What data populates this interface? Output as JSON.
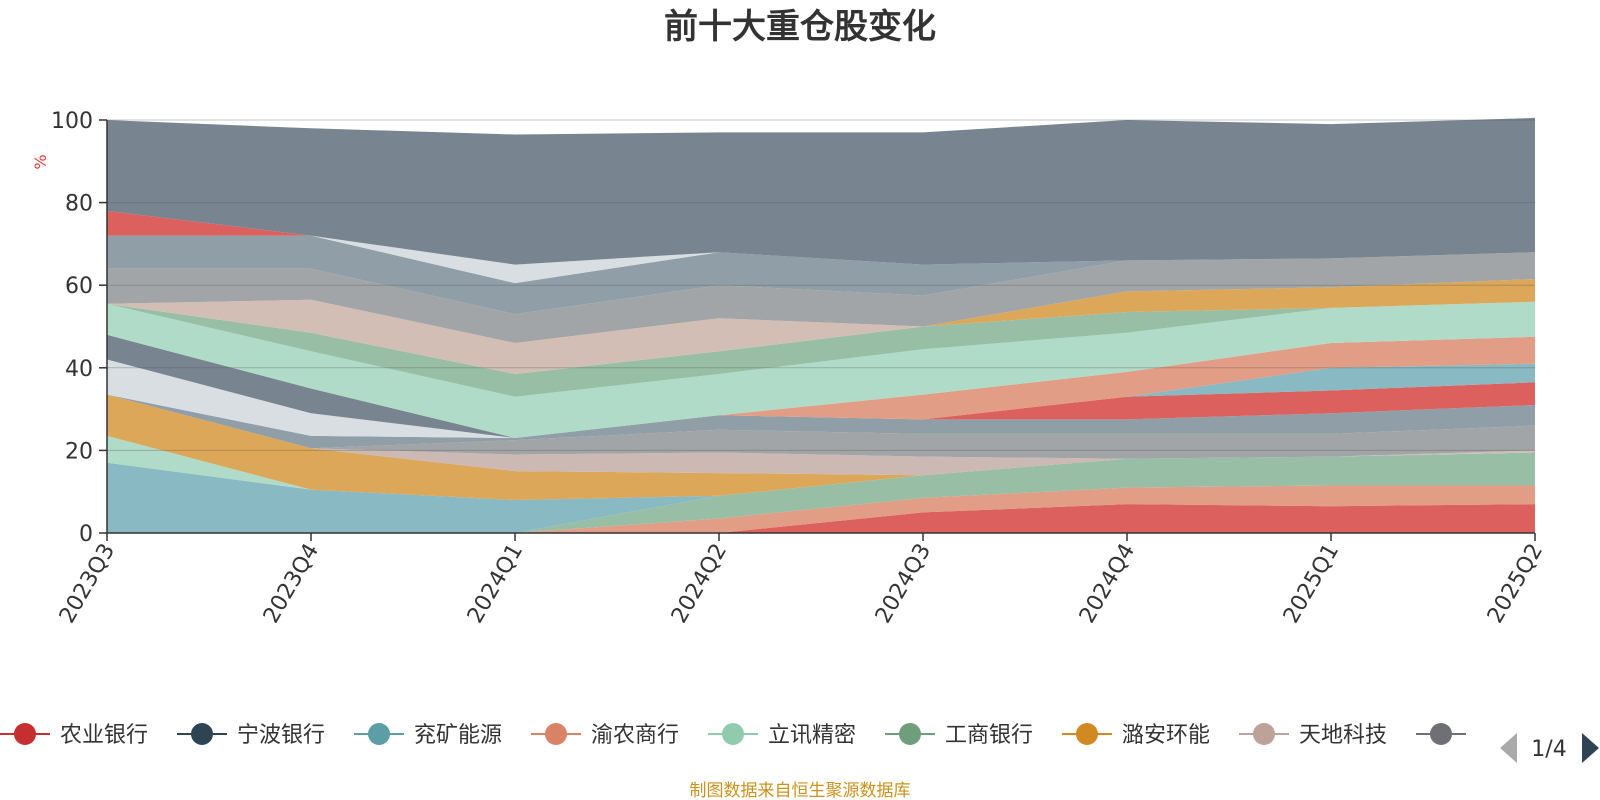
{
  "chart_data": {
    "type": "area",
    "stacked": true,
    "title": "前十大重仓股变化",
    "unit_label": "%",
    "ylim": [
      0,
      100
    ],
    "yticks": [
      0,
      20,
      40,
      60,
      80,
      100
    ],
    "grid": true,
    "categories": [
      "2023Q3",
      "2023Q4",
      "2024Q1",
      "2024Q2",
      "2024Q3",
      "2024Q4",
      "2025Q1",
      "2025Q2"
    ],
    "series": [
      {
        "name": "农业银行",
        "color": "#d9534f",
        "values": [
          0,
          0,
          0,
          0,
          5,
          7,
          6.5,
          7
        ]
      },
      {
        "name": "",
        "color": "#e0957c",
        "values": [
          0,
          0,
          0,
          3.5,
          3.5,
          4,
          5,
          4.5
        ]
      },
      {
        "name": "",
        "color": "#8fba9d",
        "values": [
          0,
          0,
          0,
          5.5,
          5.5,
          7,
          7,
          8
        ]
      },
      {
        "name": "兖矿能源",
        "color": "#7fb3bd",
        "values": [
          17,
          10.5,
          8,
          0,
          0,
          0,
          0,
          0
        ]
      },
      {
        "name": "",
        "color": "#a8d8c3",
        "values": [
          6.5,
          0,
          0,
          0,
          0,
          0,
          0,
          0
        ]
      },
      {
        "name": "",
        "color": "#cfb8b0",
        "values": [
          0,
          0,
          0,
          0,
          0,
          0,
          0,
          0.5
        ]
      },
      {
        "name": "潞安环能",
        "color": "#d9a04a",
        "values": [
          10,
          10,
          7,
          5.5,
          0,
          0,
          0,
          0
        ]
      },
      {
        "name": "天地科技",
        "color": "#c9b3ad",
        "values": [
          0,
          0,
          4,
          5,
          4.5,
          0,
          0,
          0
        ]
      },
      {
        "name": "",
        "color": "#9a9da0",
        "values": [
          0,
          0,
          3.5,
          5.5,
          5.5,
          6,
          5.5,
          6
        ]
      },
      {
        "name": "",
        "color": "#8796a0",
        "values": [
          0,
          3,
          0.5,
          3.5,
          3.5,
          3.5,
          5,
          5
        ]
      },
      {
        "name": "",
        "color": "#d9534f",
        "values": [
          0,
          0,
          0,
          0,
          0,
          5.5,
          5.5,
          5.5
        ]
      },
      {
        "name": "",
        "color": "#7fb3bd",
        "values": [
          0,
          0,
          0,
          0,
          0,
          0,
          5.5,
          4.5
        ]
      },
      {
        "name": "",
        "color": "#e0957c",
        "values": [
          0,
          0,
          0,
          0,
          6,
          6,
          6,
          6.5
        ]
      },
      {
        "name": "",
        "color": "#d6dbe1",
        "values": [
          8.5,
          5.5,
          0,
          0,
          0,
          0,
          0,
          0
        ]
      },
      {
        "name": "",
        "color": "#6d7b87",
        "values": [
          6,
          6,
          0,
          0,
          0,
          0,
          0,
          0
        ]
      },
      {
        "name": "立讯精密",
        "color": "#a8d8c3",
        "values": [
          7.5,
          9,
          10,
          10,
          11,
          9.5,
          8.5,
          8.5
        ]
      },
      {
        "name": "工商银行",
        "color": "#8fba9d",
        "values": [
          0,
          4.5,
          5.5,
          5.5,
          5.5,
          5,
          0,
          0
        ]
      },
      {
        "name": "",
        "color": "#d9a04a",
        "values": [
          0,
          0,
          0,
          0,
          0,
          5,
          5,
          5.5
        ]
      },
      {
        "name": "",
        "color": "#cfb8b0",
        "values": [
          0,
          8,
          7.5,
          8,
          0,
          0,
          0,
          0
        ]
      },
      {
        "name": "",
        "color": "#9a9da0",
        "values": [
          8.5,
          7.5,
          7,
          8,
          7.5,
          7.5,
          7,
          6.5
        ]
      },
      {
        "name": "",
        "color": "#8796a0",
        "values": [
          8,
          8,
          7.5,
          8,
          7.5,
          0,
          0,
          0
        ]
      },
      {
        "name": "",
        "color": "#d6dbe1",
        "values": [
          0,
          0,
          4.5,
          0,
          0,
          0,
          0,
          0
        ]
      },
      {
        "name": "",
        "color": "#d9534f",
        "values": [
          6,
          0,
          0,
          0,
          0,
          0,
          0,
          0
        ]
      },
      {
        "name": "宁波银行",
        "color": "#6d7b87",
        "values": [
          22,
          26,
          31.5,
          29,
          32,
          34,
          32.5,
          32.5
        ]
      }
    ],
    "legend": {
      "position": "bottom",
      "items": [
        {
          "name": "农业银行",
          "color": "#c62f2f"
        },
        {
          "name": "宁波银行",
          "color": "#2f4453"
        },
        {
          "name": "兖矿能源",
          "color": "#5b9ea6"
        },
        {
          "name": "渝农商行",
          "color": "#d98266"
        },
        {
          "name": "立讯精密",
          "color": "#8fcbac"
        },
        {
          "name": "工商银行",
          "color": "#6f9e7d"
        },
        {
          "name": "潞安环能",
          "color": "#d18a22"
        },
        {
          "name": "天地科技",
          "color": "#bda29a"
        },
        {
          "name": "",
          "color": "#6e7074"
        }
      ],
      "page": "1/4"
    }
  },
  "source_note": "制图数据来自恒生聚源数据库"
}
